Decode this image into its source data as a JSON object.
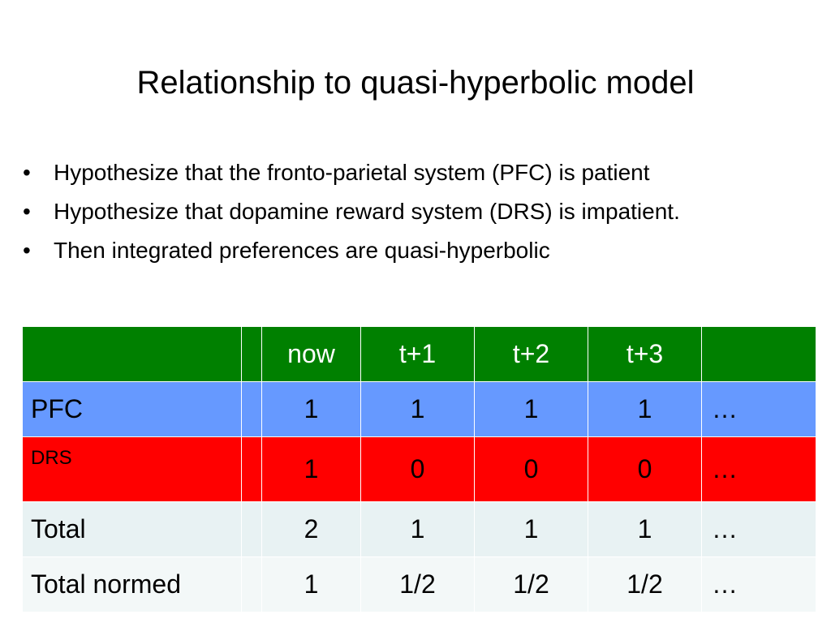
{
  "slide": {
    "title": "Relationship to quasi-hyperbolic model",
    "bullet_symbol": "•",
    "bullets": [
      "Hypothesize that the fronto-parietal system (PFC) is patient",
      "Hypothesize that dopamine reward system (DRS) is impatient.",
      "Then integrated preferences are quasi-hyperbolic"
    ]
  },
  "table": {
    "header": [
      "",
      "",
      "now",
      "t+1",
      "t+2",
      "t+3",
      ""
    ],
    "rows": [
      {
        "label": "PFC",
        "values": [
          "1",
          "1",
          "1",
          "1"
        ],
        "tail": "…"
      },
      {
        "label": "DRS",
        "values": [
          "1",
          "0",
          "0",
          "0"
        ],
        "tail": "…"
      },
      {
        "label": "Total",
        "values": [
          "2",
          "1",
          "1",
          "1"
        ],
        "tail": "…"
      },
      {
        "label": "Total normed",
        "values": [
          "1",
          "1/2",
          "1/2",
          "1/2"
        ],
        "tail": "…"
      }
    ],
    "colors": {
      "header": "#008000",
      "pfc": "#6699ff",
      "drs": "#ff0000",
      "total": "#e8f2f3",
      "normed": "#f3f8f8"
    }
  }
}
